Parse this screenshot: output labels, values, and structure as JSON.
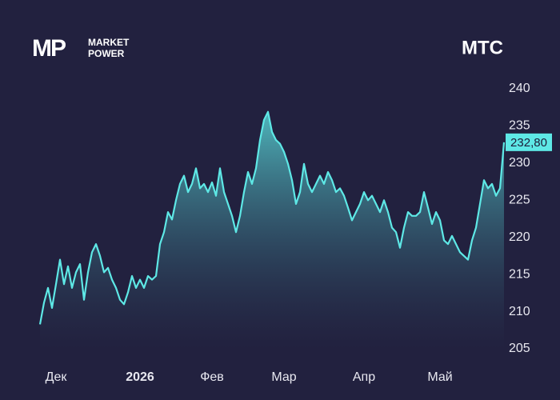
{
  "brand": {
    "mark": "MP",
    "line1": "MARKET",
    "line2": "POWER"
  },
  "chart_data": {
    "type": "area",
    "title": "МТС",
    "categories": [
      null,
      null,
      null,
      null,
      "Дек",
      null,
      null,
      null,
      null,
      null,
      null,
      null,
      null,
      null,
      null,
      null,
      null,
      null,
      null,
      null,
      null,
      null,
      null,
      null,
      null,
      "2026",
      null,
      null,
      null,
      null,
      null,
      null,
      null,
      null,
      null,
      null,
      null,
      null,
      null,
      null,
      null,
      null,
      null,
      "Фев",
      null,
      null,
      null,
      null,
      null,
      null,
      null,
      null,
      null,
      null,
      null,
      null,
      null,
      null,
      null,
      null,
      null,
      "Мар",
      null,
      null,
      null,
      null,
      null,
      null,
      null,
      null,
      null,
      null,
      null,
      null,
      null,
      null,
      null,
      null,
      null,
      null,
      null,
      "Апр",
      null,
      null,
      null,
      null,
      null,
      null,
      null,
      null,
      null,
      null,
      null,
      null,
      null,
      null,
      null,
      null,
      null,
      null,
      "Май",
      null,
      null,
      null,
      null,
      null,
      null,
      null,
      null,
      null,
      null,
      null,
      null,
      null,
      null,
      null,
      null
    ],
    "values": [
      208.3,
      211.2,
      213.2,
      210.5,
      213.7,
      217,
      213.7,
      216.1,
      213.2,
      215.3,
      216.4,
      211.6,
      215.3,
      218,
      219.1,
      217.5,
      215.3,
      215.9,
      214.3,
      213.2,
      211.6,
      211,
      212.6,
      214.8,
      213.2,
      214.3,
      213.2,
      214.8,
      214.3,
      214.8,
      219.1,
      220.7,
      223.4,
      222.4,
      225,
      227.2,
      228.3,
      226.1,
      227.2,
      229.3,
      226.6,
      227.2,
      226.1,
      227.4,
      225.6,
      229.3,
      226.1,
      224.5,
      222.9,
      220.7,
      222.9,
      226.1,
      228.8,
      227.2,
      229.3,
      233.1,
      235.8,
      236.9,
      234.2,
      233.1,
      232.6,
      231.5,
      229.9,
      227.7,
      224.5,
      226.1,
      229.9,
      227.2,
      226.1,
      227.2,
      228.3,
      227.2,
      228.8,
      227.7,
      226.1,
      226.6,
      225.6,
      224,
      222.3,
      223.4,
      224.5,
      226.1,
      225,
      225.6,
      224.5,
      223.4,
      225,
      223.4,
      221.3,
      220.7,
      218.6,
      221.3,
      223.4,
      222.9,
      222.9,
      223.4,
      226.1,
      224,
      221.8,
      223.4,
      222.3,
      219.6,
      219.1,
      220.2,
      219.1,
      218,
      217.5,
      217,
      219.6,
      221.3,
      224.5,
      227.7,
      226.6,
      227.2,
      225.6,
      226.6,
      232.8
    ],
    "color": "#5ee8e6",
    "last_label": {
      "value": 232.8,
      "label": "232,80"
    },
    "ylim": [
      205,
      240
    ],
    "yticks": [
      205,
      210,
      215,
      220,
      225,
      230,
      235,
      240
    ]
  }
}
